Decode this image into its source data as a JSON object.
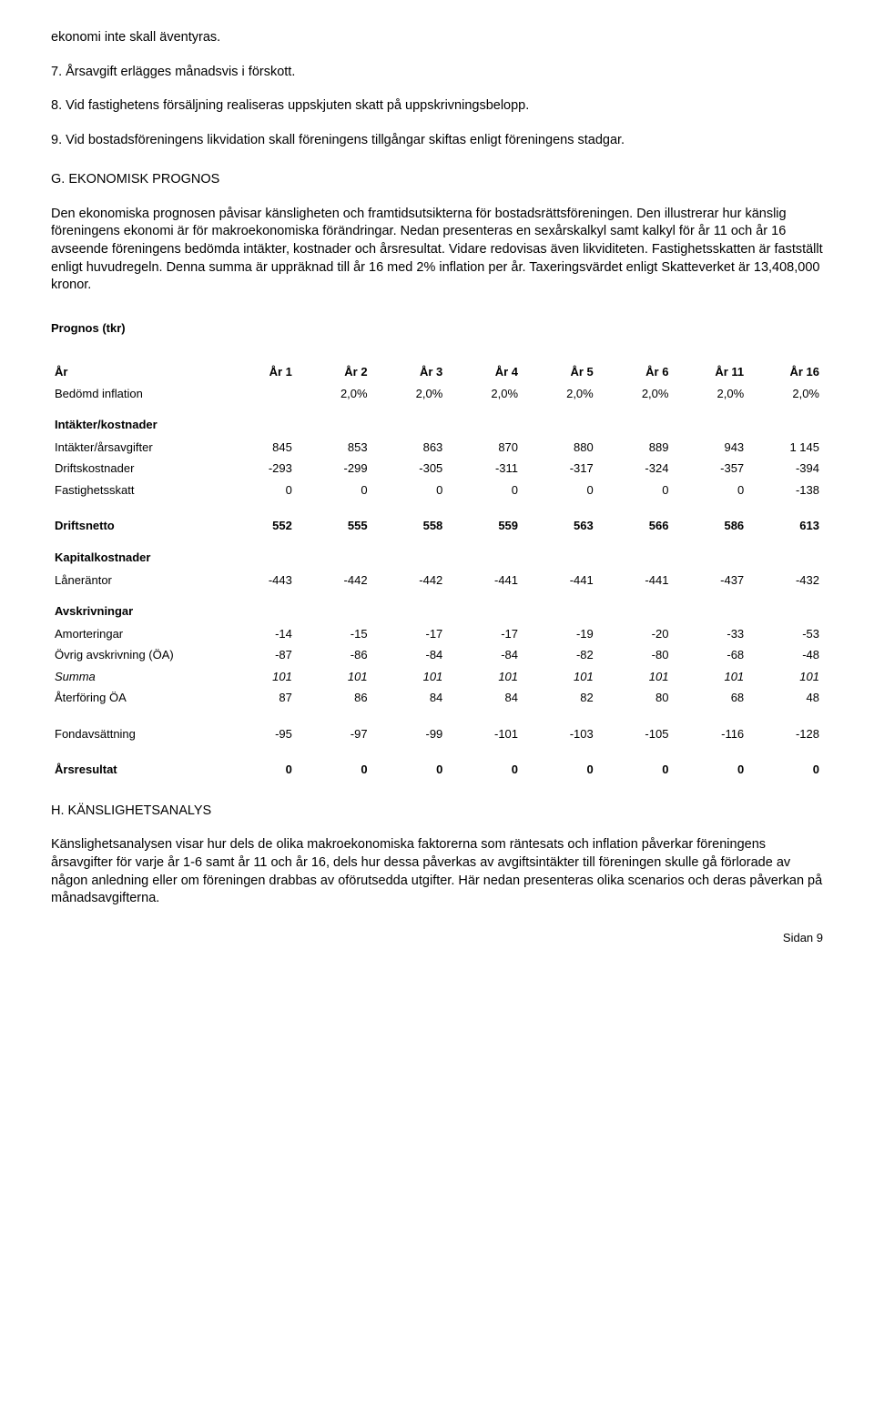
{
  "intro": {
    "p1": "ekonomi inte skall äventyras.",
    "p2": "7. Årsavgift erlägges månadsvis i förskott.",
    "p3": "8. Vid fastighetens försäljning realiseras uppskjuten skatt på uppskrivningsbelopp.",
    "p4": "9. Vid bostadsföreningens likvidation skall föreningens tillgångar skiftas enligt föreningens stadgar."
  },
  "sectionG": {
    "heading": "G. EKONOMISK PROGNOS",
    "body": "Den ekonomiska prognosen påvisar känsligheten och framtidsutsikterna för bostadsrättsföreningen. Den illustrerar hur känslig föreningens ekonomi är för makroekonomiska förändringar. Nedan presenteras en sexårskalkyl samt kalkyl för år 11 och år 16 avseende föreningens bedömda intäkter, kostnader och årsresultat. Vidare redovisas även likviditeten. Fastighetsskatten är fastställt enligt huvudregeln. Denna summa är uppräknad till år 16 med 2% inflation per år. Taxeringsvärdet enligt Skatteverket är 13,408,000 kronor."
  },
  "prognos": {
    "title": "Prognos (tkr)",
    "header": {
      "rowlabel": "År",
      "cols": [
        "År 1",
        "År 2",
        "År 3",
        "År 4",
        "År 5",
        "År 6",
        "År 11",
        "År 16"
      ]
    },
    "inflation": {
      "label": "Bedömd inflation",
      "vals": [
        "2,0%",
        "2,0%",
        "2,0%",
        "2,0%",
        "2,0%",
        "2,0%",
        "2,0%"
      ]
    },
    "intakter_heading": "Intäkter/kostnader",
    "intakter": {
      "label": "Intäkter/årsavgifter",
      "vals": [
        "845",
        "853",
        "863",
        "870",
        "880",
        "889",
        "943",
        "1 145"
      ]
    },
    "drifts": {
      "label": "Driftskostnader",
      "vals": [
        "-293",
        "-299",
        "-305",
        "-311",
        "-317",
        "-324",
        "-357",
        "-394"
      ]
    },
    "fastskatt": {
      "label": "Fastighetsskatt",
      "vals": [
        "0",
        "0",
        "0",
        "0",
        "0",
        "0",
        "0",
        "-138"
      ]
    },
    "driftsnetto": {
      "label": "Driftsnetto",
      "vals": [
        "552",
        "555",
        "558",
        "559",
        "563",
        "566",
        "586",
        "613"
      ]
    },
    "kapital_heading": "Kapitalkostnader",
    "lanerantor": {
      "label": "Låneräntor",
      "vals": [
        "-443",
        "-442",
        "-442",
        "-441",
        "-441",
        "-441",
        "-437",
        "-432"
      ]
    },
    "avskriv_heading": "Avskrivningar",
    "amort": {
      "label": "Amorteringar",
      "vals": [
        "-14",
        "-15",
        "-17",
        "-17",
        "-19",
        "-20",
        "-33",
        "-53"
      ]
    },
    "ovrig": {
      "label": "Övrig avskrivning (ÖA)",
      "vals": [
        "-87",
        "-86",
        "-84",
        "-84",
        "-82",
        "-80",
        "-68",
        "-48"
      ]
    },
    "summa": {
      "label": "Summa",
      "vals": [
        "101",
        "101",
        "101",
        "101",
        "101",
        "101",
        "101",
        "101"
      ]
    },
    "aterforing": {
      "label": "Återföring ÖA",
      "vals": [
        "87",
        "86",
        "84",
        "84",
        "82",
        "80",
        "68",
        "48"
      ]
    },
    "fondav": {
      "label": "Fondavsättning",
      "vals": [
        "-95",
        "-97",
        "-99",
        "-101",
        "-103",
        "-105",
        "-116",
        "-128"
      ]
    },
    "arsresultat": {
      "label": "Årsresultat",
      "vals": [
        "0",
        "0",
        "0",
        "0",
        "0",
        "0",
        "0",
        "0"
      ]
    }
  },
  "sectionH": {
    "heading": "H. KÄNSLIGHETSANALYS",
    "body": "Känslighetsanalysen visar hur dels de olika makroekonomiska faktorerna som räntesats och inflation påverkar föreningens årsavgifter för varje år 1-6 samt år 11 och år 16, dels hur dessa påverkas av avgiftsintäkter till föreningen skulle gå förlorade av någon anledning eller om föreningen drabbas av oförutsedda utgifter. Här nedan presenteras olika scenarios och deras påverkan på månadsavgifterna."
  },
  "footer": "Sidan 9"
}
